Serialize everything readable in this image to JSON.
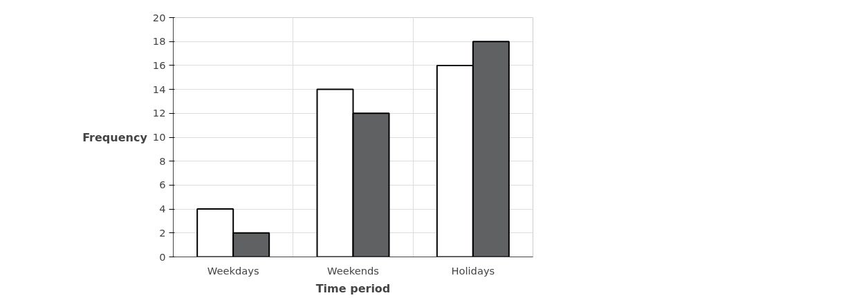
{
  "chart_data": {
    "type": "bar",
    "xlabel": "Time period",
    "ylabel": "Frequency",
    "categories": [
      "Weekdays",
      "Weekends",
      "Holidays"
    ],
    "series": [
      {
        "color": "#ffffff",
        "values": [
          4,
          14,
          16
        ]
      },
      {
        "color": "#5f6163",
        "values": [
          2,
          12,
          18
        ]
      }
    ],
    "ylim": [
      0,
      20
    ],
    "yticks": [
      0,
      2,
      4,
      6,
      8,
      10,
      12,
      14,
      16,
      18,
      20
    ],
    "grid": true
  }
}
